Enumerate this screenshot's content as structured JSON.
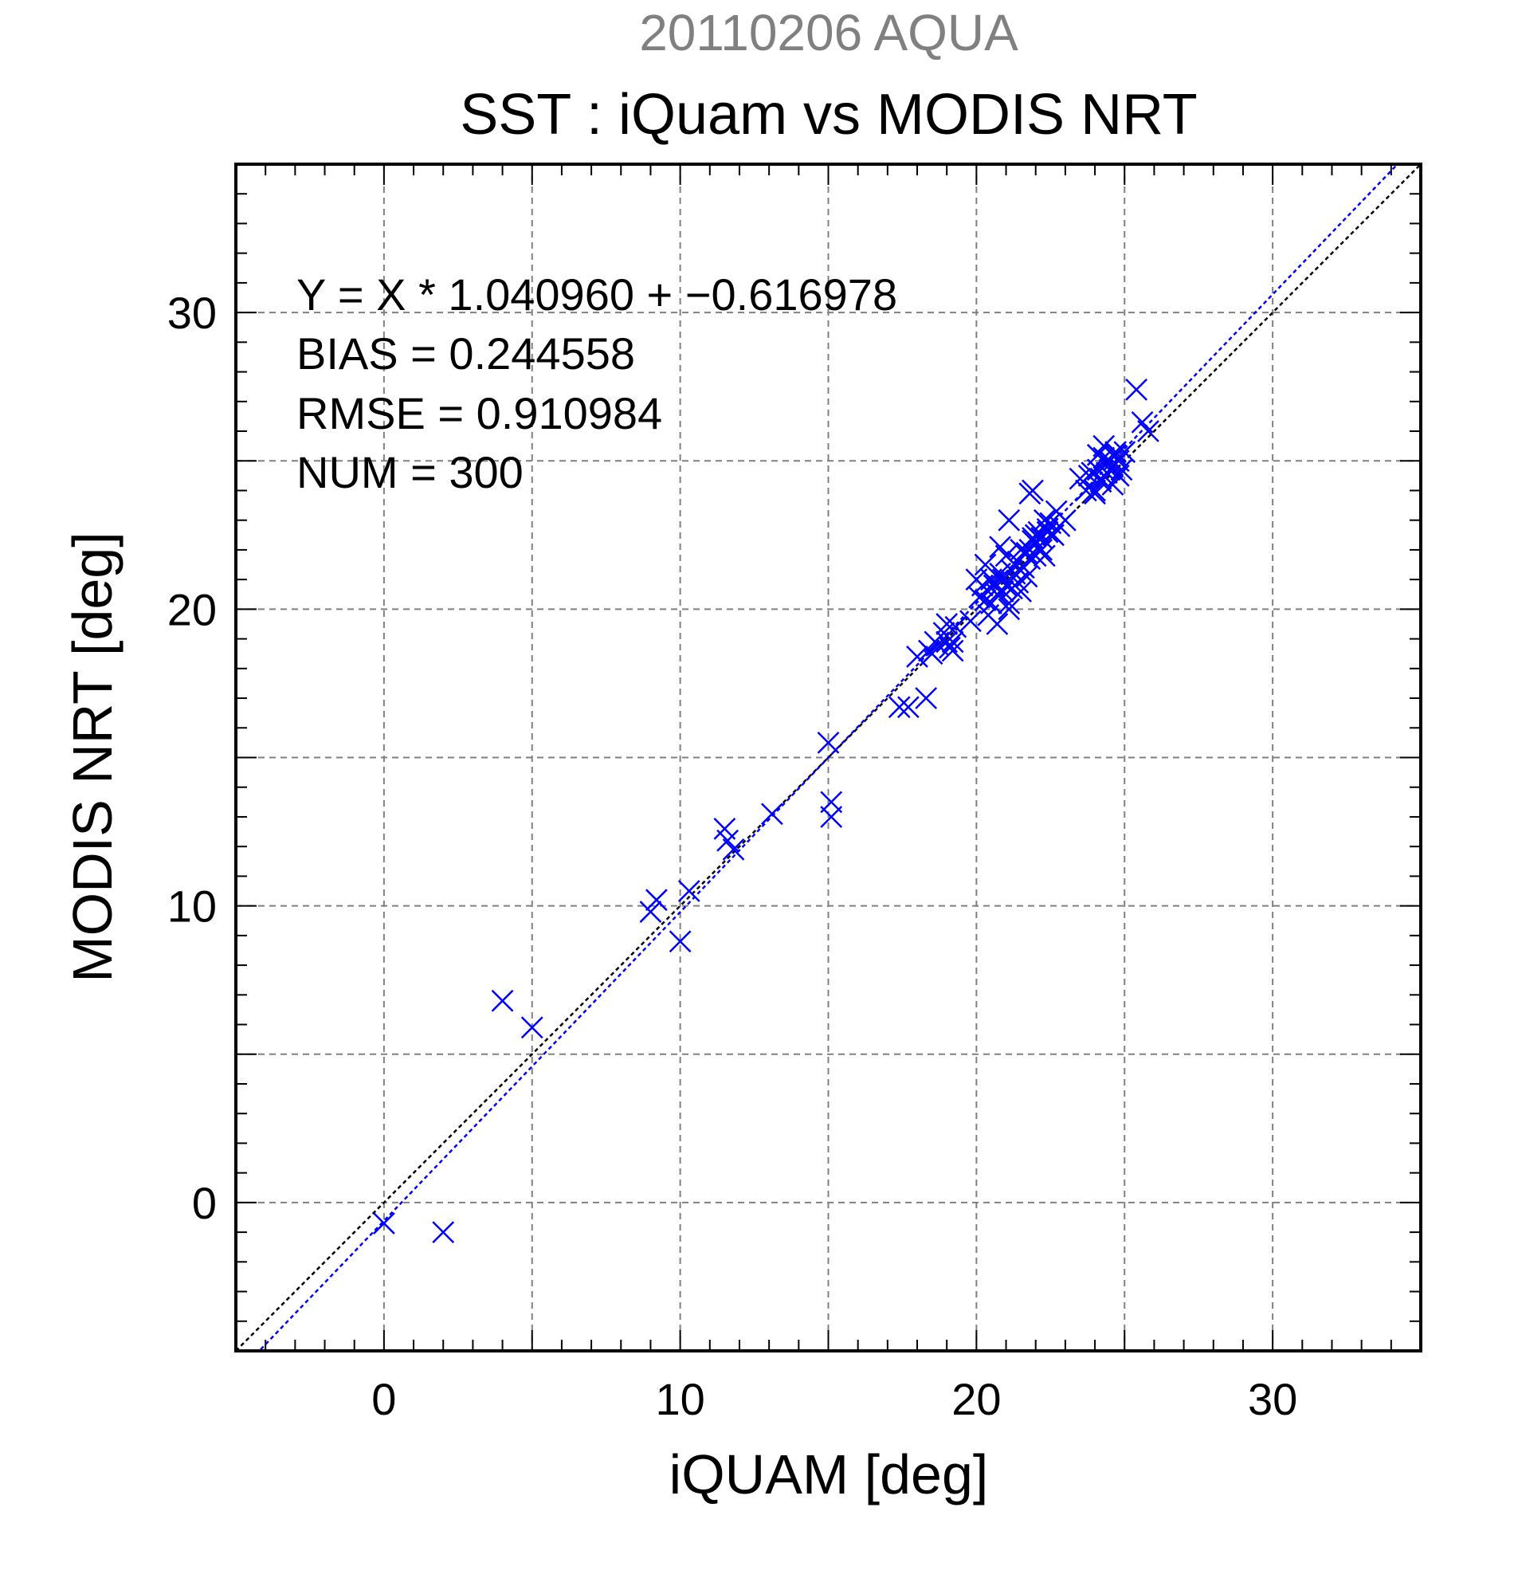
{
  "chart_data": {
    "type": "scatter",
    "supertitle": "20110206 AQUA",
    "title": "SST : iQuam vs MODIS NRT",
    "xlabel": "iQUAM [deg]",
    "ylabel": "MODIS NRT [deg]",
    "xlim": [
      -5,
      35
    ],
    "ylim": [
      -5,
      35
    ],
    "xticks": [
      0,
      10,
      20,
      30
    ],
    "yticks": [
      0,
      10,
      20,
      30
    ],
    "grid": true,
    "stats": {
      "equation": "Y = X * 1.040960 + −0.616978",
      "bias": "BIAS = 0.244558",
      "rmse": "RMSE = 0.910984",
      "num": "NUM = 300"
    },
    "fit": {
      "slope": 1.04096,
      "intercept": -0.616978
    },
    "colors": {
      "points": "#0000ff",
      "fit_line": "#0000ff",
      "identity_line": "#000000",
      "grid": "#808080",
      "supertitle": "#808080",
      "text": "#000000"
    },
    "series": [
      {
        "marker": "x",
        "x": [
          0.0,
          2.0,
          4.0,
          5.0,
          9.0,
          9.2,
          10.0,
          10.3,
          11.5,
          11.6,
          11.8,
          13.1,
          15.0,
          15.1,
          15.1,
          17.4,
          17.7,
          18.0,
          18.3,
          18.4,
          18.6,
          18.5,
          18.7,
          18.9,
          19.0,
          19.1,
          19.2,
          19.0,
          19.3,
          19.2,
          19.8,
          20.0,
          20.1,
          20.2,
          20.3,
          20.4,
          20.5,
          20.6,
          20.7,
          20.8,
          20.9,
          21.0,
          21.1,
          21.2,
          21.3,
          21.4,
          21.5,
          21.6,
          21.7,
          21.8,
          21.9,
          22.0,
          22.1,
          22.2,
          22.3,
          22.4,
          22.5,
          22.6,
          22.8,
          23.0,
          20.3,
          20.6,
          20.9,
          21.2,
          21.5,
          21.8,
          22.1,
          22.4,
          20.8,
          21.1,
          21.4,
          21.7,
          22.0,
          21.9,
          22.3,
          22.7,
          21.0,
          20.5,
          20.7,
          21.3,
          21.6,
          21.9,
          21.1,
          21.8,
          22.2,
          23.5,
          23.7,
          23.9,
          24.0,
          24.1,
          24.2,
          24.3,
          24.4,
          24.5,
          24.6,
          24.7,
          24.8,
          24.9,
          25.0,
          23.8,
          24.0,
          24.3,
          24.6,
          24.4,
          24.2,
          24.8,
          24.1,
          24.5,
          24.7,
          25.4,
          25.6,
          25.8
        ],
        "y": [
          -0.7,
          -1.0,
          6.8,
          5.9,
          9.8,
          10.2,
          8.8,
          10.5,
          12.6,
          12.2,
          11.9,
          13.1,
          15.5,
          13.0,
          13.5,
          16.7,
          16.7,
          18.4,
          17.0,
          18.6,
          18.9,
          18.5,
          18.8,
          19.2,
          19.5,
          18.7,
          18.6,
          18.9,
          19.4,
          18.9,
          19.6,
          21.0,
          20.4,
          20.8,
          21.5,
          19.8,
          20.2,
          20.9,
          19.5,
          21.2,
          20.6,
          21.8,
          20.2,
          20.7,
          21.5,
          20.9,
          22.0,
          21.4,
          21.1,
          23.9,
          22.4,
          21.8,
          22.6,
          22.0,
          23.0,
          22.7,
          22.9,
          22.5,
          22.8,
          23.0,
          20.3,
          20.8,
          21.0,
          21.3,
          20.6,
          22.0,
          22.1,
          22.6,
          22.1,
          23.0,
          21.6,
          21.9,
          22.5,
          24.0,
          21.8,
          23.3,
          20.8,
          21.0,
          20.5,
          21.2,
          21.9,
          22.3,
          20.0,
          21.7,
          22.4,
          24.4,
          24.0,
          24.6,
          23.9,
          24.7,
          24.4,
          25.1,
          24.6,
          25.0,
          24.8,
          25.3,
          25.0,
          24.7,
          25.3,
          24.5,
          24.0,
          25.5,
          24.2,
          24.9,
          24.3,
          24.5,
          25.2,
          24.7,
          25.2,
          27.4,
          26.3,
          26.0
        ]
      }
    ]
  }
}
